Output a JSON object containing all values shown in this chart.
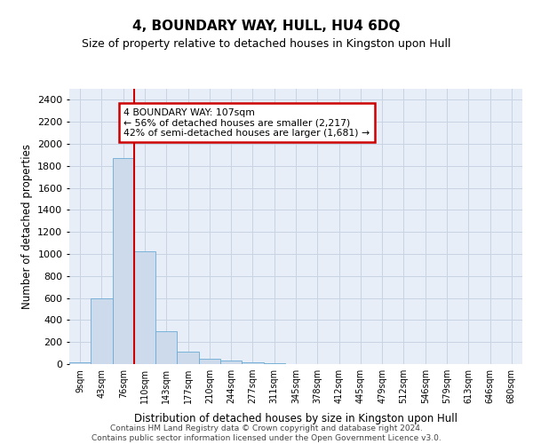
{
  "title": "4, BOUNDARY WAY, HULL, HU4 6DQ",
  "subtitle": "Size of property relative to detached houses in Kingston upon Hull",
  "xlabel": "Distribution of detached houses by size in Kingston upon Hull",
  "ylabel": "Number of detached properties",
  "bar_color": "#ccdaeb",
  "bar_edge_color": "#6aaad4",
  "categories": [
    "9sqm",
    "43sqm",
    "76sqm",
    "110sqm",
    "143sqm",
    "177sqm",
    "210sqm",
    "244sqm",
    "277sqm",
    "311sqm",
    "345sqm",
    "378sqm",
    "412sqm",
    "445sqm",
    "479sqm",
    "512sqm",
    "546sqm",
    "579sqm",
    "613sqm",
    "646sqm",
    "680sqm"
  ],
  "values": [
    20,
    595,
    1875,
    1025,
    295,
    110,
    50,
    30,
    20,
    5,
    0,
    0,
    0,
    0,
    0,
    0,
    0,
    0,
    0,
    0,
    0
  ],
  "ylim": [
    0,
    2500
  ],
  "yticks": [
    0,
    200,
    400,
    600,
    800,
    1000,
    1200,
    1400,
    1600,
    1800,
    2000,
    2200,
    2400
  ],
  "vline_x": 2.5,
  "annotation_text": "4 BOUNDARY WAY: 107sqm\n← 56% of detached houses are smaller (2,217)\n42% of semi-detached houses are larger (1,681) →",
  "annotation_box_facecolor": "#ffffff",
  "annotation_box_edgecolor": "#cc0000",
  "vline_color": "#cc0000",
  "grid_color": "#c8d4e4",
  "background_color": "#e8eef8",
  "footer_line1": "Contains HM Land Registry data © Crown copyright and database right 2024.",
  "footer_line2": "Contains public sector information licensed under the Open Government Licence v3.0."
}
